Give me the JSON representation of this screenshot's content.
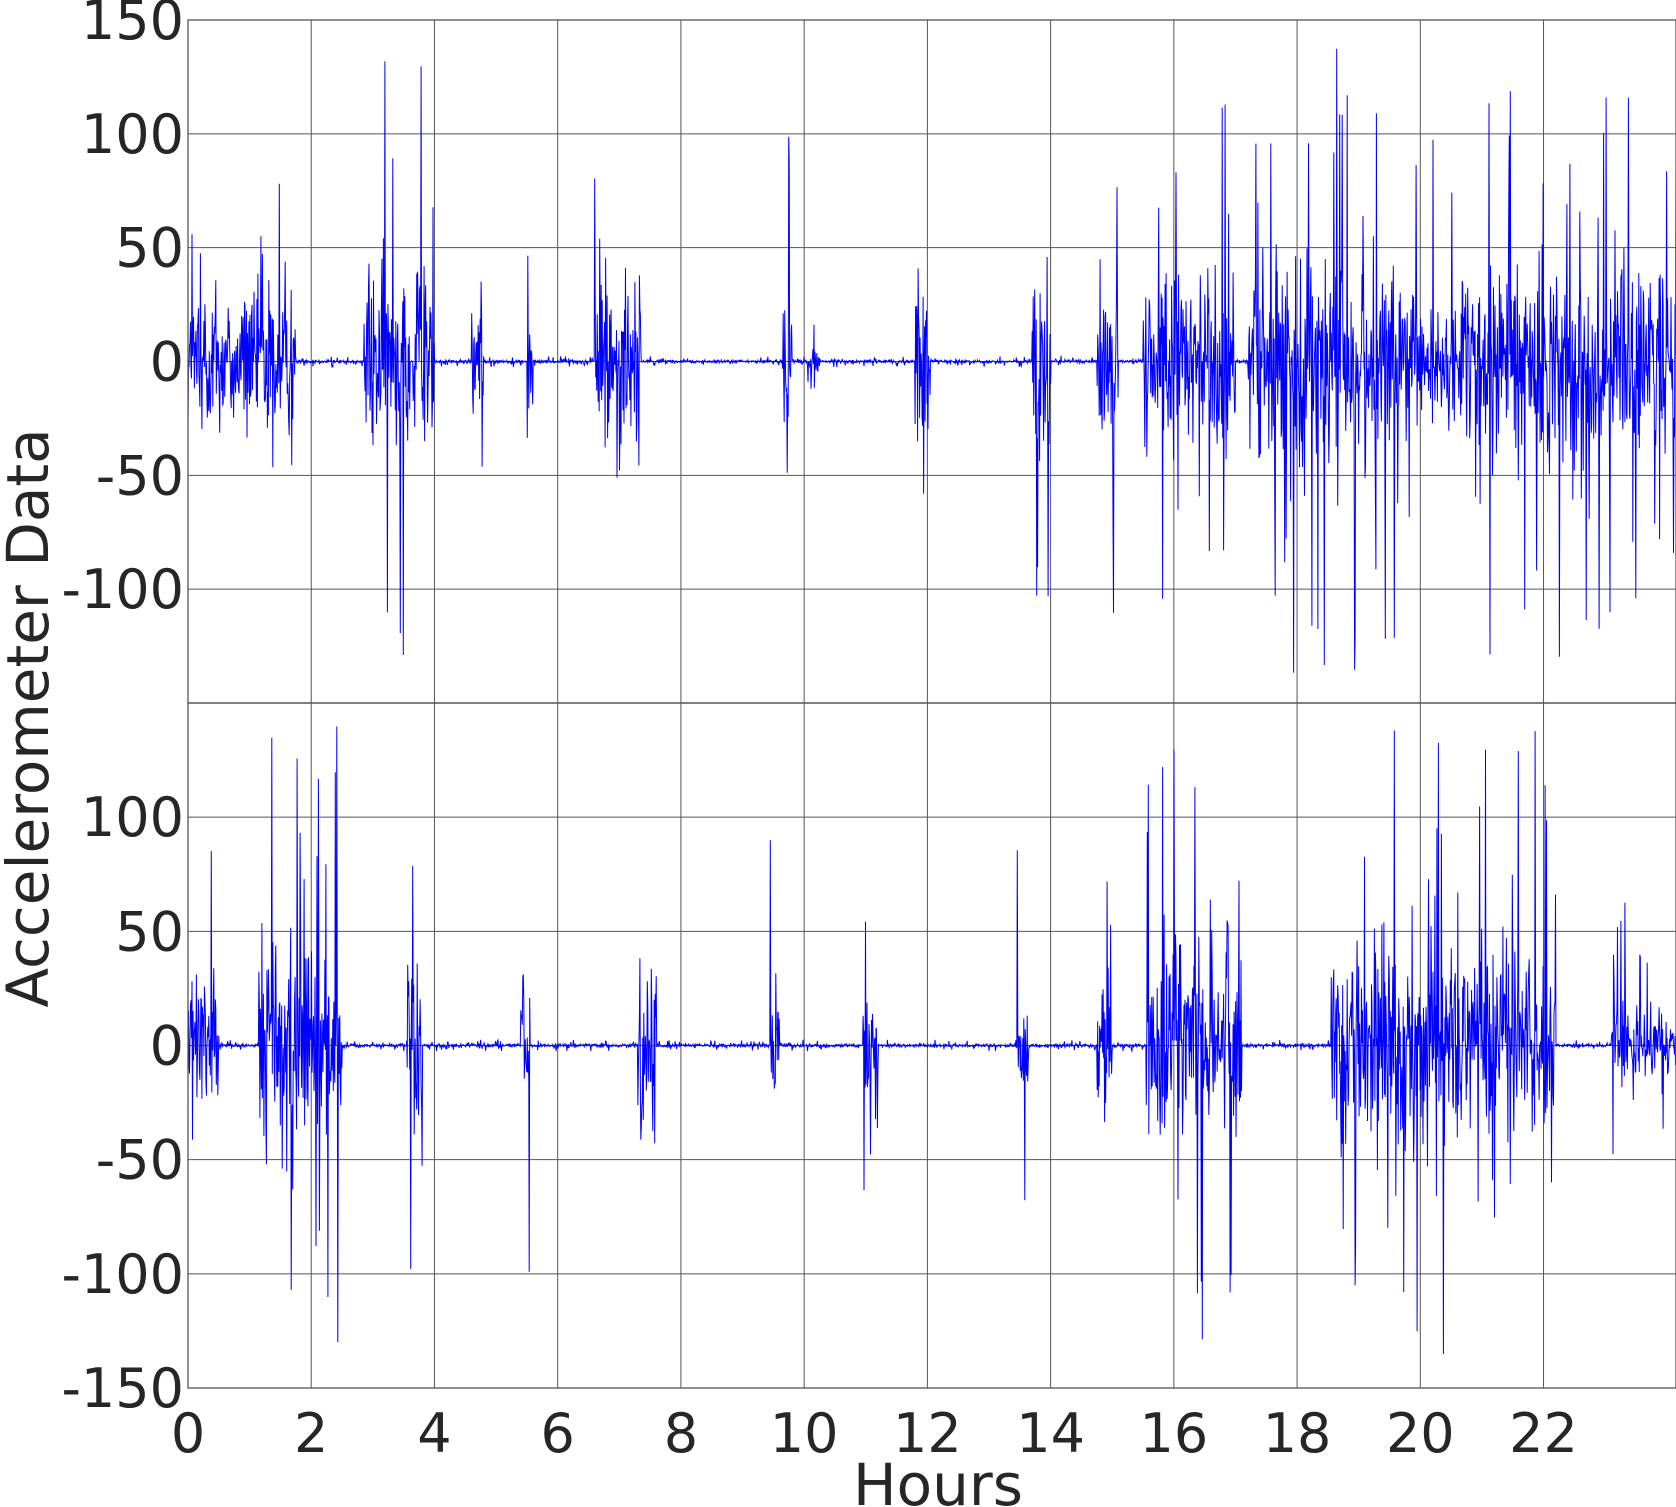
{
  "chart_data": [
    {
      "type": "line",
      "panel": "top",
      "xlim": [
        0,
        24.15
      ],
      "ylim": [
        -150,
        150
      ],
      "yticks": [
        -100,
        -50,
        0,
        50,
        100,
        150
      ],
      "yticklabels": [
        "-100",
        "-50",
        "0",
        "50",
        "100",
        "150"
      ],
      "xticks": [
        0,
        2,
        4,
        6,
        8,
        10,
        12,
        14,
        16,
        18,
        20,
        22
      ],
      "grid": true,
      "series": [
        {
          "color": "#0000ff",
          "bursts": [
            {
              "start": 0.0,
              "end": 1.75,
              "amplitude": 100
            },
            {
              "start": 2.85,
              "end": 3.6,
              "amplitude": 140
            },
            {
              "start": 3.65,
              "end": 4.0,
              "amplitude": 140
            },
            {
              "start": 4.6,
              "end": 4.8,
              "amplitude": 90
            },
            {
              "start": 5.5,
              "end": 5.6,
              "amplitude": 100
            },
            {
              "start": 6.6,
              "end": 7.35,
              "amplitude": 130
            },
            {
              "start": 9.65,
              "end": 9.8,
              "amplitude": 110
            },
            {
              "start": 10.05,
              "end": 10.25,
              "amplitude": 40
            },
            {
              "start": 11.8,
              "end": 12.05,
              "amplitude": 120
            },
            {
              "start": 13.7,
              "end": 14.0,
              "amplitude": 120
            },
            {
              "start": 14.75,
              "end": 15.1,
              "amplitude": 115
            },
            {
              "start": 15.5,
              "end": 17.0,
              "amplitude": 115
            },
            {
              "start": 17.2,
              "end": 19.8,
              "amplitude": 140
            },
            {
              "start": 19.8,
              "end": 21.0,
              "amplitude": 100
            },
            {
              "start": 21.0,
              "end": 24.15,
              "amplitude": 130
            }
          ]
        }
      ]
    },
    {
      "type": "line",
      "panel": "bottom",
      "xlim": [
        0,
        24.15
      ],
      "ylim": [
        -150,
        150
      ],
      "yticks": [
        -150,
        -100,
        -50,
        0,
        50,
        100
      ],
      "yticklabels": [
        "-150",
        "-100",
        "-50",
        "0",
        "50",
        "100"
      ],
      "xticks": [
        0,
        2,
        4,
        6,
        8,
        10,
        12,
        14,
        16,
        18,
        20,
        22
      ],
      "xticklabels": [
        "0",
        "2",
        "4",
        "6",
        "8",
        "10",
        "12",
        "14",
        "16",
        "18",
        "20",
        "22"
      ],
      "xlabel": "Hours",
      "grid": true,
      "series": [
        {
          "color": "#0000ff",
          "bursts": [
            {
              "start": 0.0,
              "end": 0.5,
              "amplitude": 120
            },
            {
              "start": 1.15,
              "end": 2.5,
              "amplitude": 140
            },
            {
              "start": 3.55,
              "end": 3.8,
              "amplitude": 130
            },
            {
              "start": 5.4,
              "end": 5.55,
              "amplitude": 140
            },
            {
              "start": 7.3,
              "end": 7.6,
              "amplitude": 130
            },
            {
              "start": 9.45,
              "end": 9.6,
              "amplitude": 100
            },
            {
              "start": 10.95,
              "end": 11.2,
              "amplitude": 100
            },
            {
              "start": 13.45,
              "end": 13.65,
              "amplitude": 90
            },
            {
              "start": 14.75,
              "end": 15.0,
              "amplitude": 120
            },
            {
              "start": 15.55,
              "end": 17.1,
              "amplitude": 130
            },
            {
              "start": 18.55,
              "end": 21.0,
              "amplitude": 140
            },
            {
              "start": 21.0,
              "end": 22.2,
              "amplitude": 140
            },
            {
              "start": 23.1,
              "end": 23.35,
              "amplitude": 80
            },
            {
              "start": 23.35,
              "end": 24.15,
              "amplitude": 40
            }
          ]
        }
      ]
    }
  ],
  "shared": {
    "ylabel": "Accelerometer Data"
  }
}
